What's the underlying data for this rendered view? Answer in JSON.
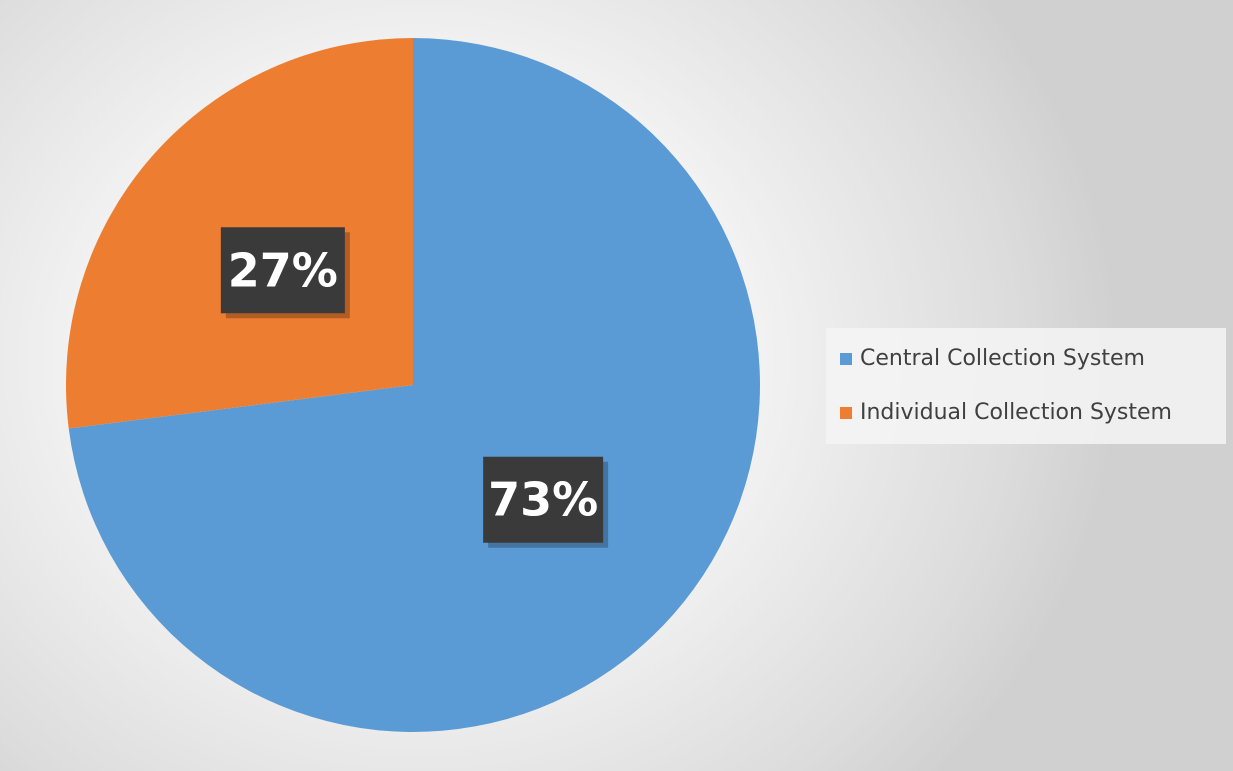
{
  "chart_data": {
    "type": "pie",
    "title": "",
    "categories": [
      "Central Collection System",
      "Individual Collection System"
    ],
    "values": [
      73,
      27
    ],
    "data_labels": [
      "73%",
      "27%"
    ],
    "colors": [
      "#5b9bd5",
      "#ed7d31"
    ],
    "legend": {
      "placement": "right",
      "entries": [
        "Central Collection System",
        "Individual Collection System"
      ]
    },
    "start_angle": "12 o'clock",
    "direction": "clockwise"
  }
}
